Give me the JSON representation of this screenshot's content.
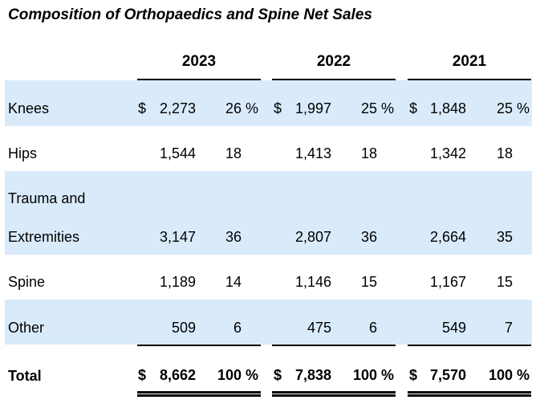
{
  "title": "Composition of Orthopaedics and Spine Net Sales",
  "years": [
    "2023",
    "2022",
    "2021"
  ],
  "rows": [
    {
      "label": "Knees",
      "cells": [
        {
          "dollar": "$",
          "amount": "2,273",
          "pct": "26 %"
        },
        {
          "dollar": "$",
          "amount": "1,997",
          "pct": "25 %"
        },
        {
          "dollar": "$",
          "amount": "1,848",
          "pct": "25 %"
        }
      ]
    },
    {
      "label": "Hips",
      "cells": [
        {
          "dollar": "",
          "amount": "1,544",
          "pct": "18"
        },
        {
          "dollar": "",
          "amount": "1,413",
          "pct": "18"
        },
        {
          "dollar": "",
          "amount": "1,342",
          "pct": "18"
        }
      ]
    },
    {
      "label": "Trauma and",
      "label2": "Extremities",
      "cells": [
        {
          "dollar": "",
          "amount": "3,147",
          "pct": "36"
        },
        {
          "dollar": "",
          "amount": "2,807",
          "pct": "36"
        },
        {
          "dollar": "",
          "amount": "2,664",
          "pct": "35"
        }
      ]
    },
    {
      "label": "Spine",
      "cells": [
        {
          "dollar": "",
          "amount": "1,189",
          "pct": "14"
        },
        {
          "dollar": "",
          "amount": "1,146",
          "pct": "15"
        },
        {
          "dollar": "",
          "amount": "1,167",
          "pct": "15"
        }
      ]
    },
    {
      "label": "Other",
      "cells": [
        {
          "dollar": "",
          "amount": "509",
          "pct": "6"
        },
        {
          "dollar": "",
          "amount": "475",
          "pct": "6"
        },
        {
          "dollar": "",
          "amount": "549",
          "pct": "7"
        }
      ]
    },
    {
      "label": "Total",
      "cells": [
        {
          "dollar": "$",
          "amount": "8,662",
          "pct": "100 %"
        },
        {
          "dollar": "$",
          "amount": "7,838",
          "pct": "100 %"
        },
        {
          "dollar": "$",
          "amount": "7,570",
          "pct": "100 %"
        }
      ]
    }
  ],
  "colors": {
    "band": "#d9ebfb",
    "text": "#000000"
  }
}
